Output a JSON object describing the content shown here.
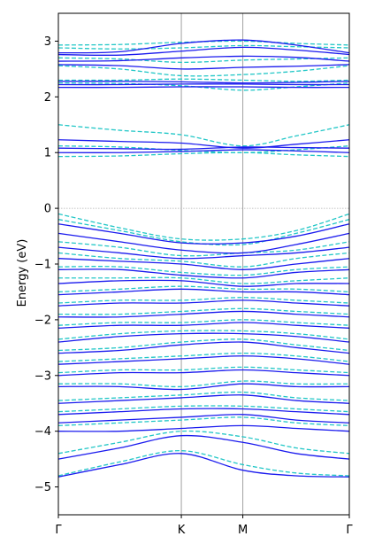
{
  "chart_data": {
    "type": "line",
    "title": "",
    "xlabel": "",
    "ylabel": "Energy (eV)",
    "ylim": [
      -5.5,
      3.5
    ],
    "yticks": [
      -5,
      -4,
      -3,
      -2,
      -1,
      0,
      1,
      2,
      3
    ],
    "ytick_labels": [
      "−5",
      "−4",
      "−3",
      "−2",
      "−1",
      "0",
      "1",
      "2",
      "3"
    ],
    "kpath": {
      "labels": [
        "Γ",
        "K",
        "M",
        "Γ"
      ],
      "positions": [
        0,
        1,
        1.5,
        2.366
      ]
    },
    "fermi_level": 0,
    "grid": "vertical lines at high-symmetry points",
    "colors": {
      "solid": "#1a1aee",
      "dashed": "#22c7c7",
      "vline": "#a0a0a0",
      "fermi": "#b0b0b0"
    },
    "series": [
      {
        "style": "solid",
        "bands": [
          [
            2.79,
            2.81,
            2.96,
            3.02,
            2.93,
            2.79
          ],
          [
            2.76,
            2.75,
            2.82,
            2.89,
            2.84,
            2.76
          ],
          [
            2.64,
            2.65,
            2.7,
            2.73,
            2.71,
            2.64
          ],
          [
            2.58,
            2.56,
            2.5,
            2.53,
            2.55,
            2.58
          ],
          [
            2.28,
            2.28,
            2.27,
            2.25,
            2.26,
            2.28
          ],
          [
            2.22,
            2.22,
            2.23,
            2.23,
            2.22,
            2.22
          ],
          [
            2.17,
            2.17,
            2.18,
            2.18,
            2.17,
            2.17
          ],
          [
            1.23,
            1.2,
            1.17,
            1.08,
            1.15,
            1.23
          ],
          [
            1.08,
            1.07,
            1.06,
            1.1,
            1.09,
            1.08
          ],
          [
            1.0,
            1.0,
            1.02,
            1.05,
            1.03,
            1.0
          ],
          [
            -0.28,
            -0.45,
            -0.62,
            -0.62,
            -0.5,
            -0.28
          ],
          [
            -0.45,
            -0.6,
            -0.75,
            -0.8,
            -0.65,
            -0.45
          ],
          [
            -0.7,
            -0.8,
            -0.9,
            -0.85,
            -0.8,
            -0.7
          ],
          [
            -0.9,
            -0.95,
            -1.0,
            -1.1,
            -1.0,
            -0.9
          ],
          [
            -1.1,
            -1.1,
            -1.2,
            -1.25,
            -1.15,
            -1.1
          ],
          [
            -1.35,
            -1.3,
            -1.3,
            -1.4,
            -1.35,
            -1.35
          ],
          [
            -1.55,
            -1.5,
            -1.45,
            -1.5,
            -1.5,
            -1.55
          ],
          [
            -1.75,
            -1.7,
            -1.7,
            -1.65,
            -1.7,
            -1.75
          ],
          [
            -1.95,
            -1.95,
            -1.9,
            -1.85,
            -1.9,
            -1.95
          ],
          [
            -2.15,
            -2.1,
            -2.1,
            -2.05,
            -2.1,
            -2.15
          ],
          [
            -2.4,
            -2.3,
            -2.25,
            -2.25,
            -2.3,
            -2.4
          ],
          [
            -2.6,
            -2.55,
            -2.45,
            -2.4,
            -2.5,
            -2.6
          ],
          [
            -2.8,
            -2.75,
            -2.7,
            -2.65,
            -2.7,
            -2.8
          ],
          [
            -3.0,
            -2.95,
            -2.95,
            -2.9,
            -2.95,
            -3.0
          ],
          [
            -3.2,
            -3.2,
            -3.25,
            -3.15,
            -3.2,
            -3.2
          ],
          [
            -3.5,
            -3.45,
            -3.4,
            -3.35,
            -3.45,
            -3.5
          ],
          [
            -3.7,
            -3.65,
            -3.6,
            -3.6,
            -3.65,
            -3.7
          ],
          [
            -3.85,
            -3.8,
            -3.75,
            -3.7,
            -3.8,
            -3.85
          ],
          [
            -4.0,
            -4.0,
            -3.95,
            -3.9,
            -3.95,
            -4.0
          ],
          [
            -4.5,
            -4.3,
            -4.08,
            -4.2,
            -4.4,
            -4.5
          ],
          [
            -4.82,
            -4.6,
            -4.4,
            -4.7,
            -4.8,
            -4.82
          ]
        ]
      },
      {
        "style": "dashed",
        "bands": [
          [
            2.93,
            2.94,
            2.98,
            3.0,
            2.96,
            2.93
          ],
          [
            2.88,
            2.86,
            2.88,
            2.92,
            2.9,
            2.88
          ],
          [
            2.7,
            2.68,
            2.62,
            2.66,
            2.68,
            2.7
          ],
          [
            2.56,
            2.5,
            2.38,
            2.4,
            2.46,
            2.56
          ],
          [
            2.3,
            2.3,
            2.32,
            2.3,
            2.28,
            2.3
          ],
          [
            2.25,
            2.24,
            2.2,
            2.12,
            2.18,
            2.25
          ],
          [
            1.5,
            1.4,
            1.32,
            1.12,
            1.3,
            1.5
          ],
          [
            1.12,
            1.1,
            1.04,
            1.0,
            1.05,
            1.12
          ],
          [
            0.93,
            0.94,
            0.98,
            1.0,
            0.96,
            0.93
          ],
          [
            -0.1,
            -0.35,
            -0.55,
            -0.55,
            -0.4,
            -0.1
          ],
          [
            -0.2,
            -0.4,
            -0.6,
            -0.65,
            -0.45,
            -0.2
          ],
          [
            -0.6,
            -0.7,
            -0.85,
            -0.8,
            -0.75,
            -0.6
          ],
          [
            -0.8,
            -0.9,
            -0.95,
            -1.05,
            -0.9,
            -0.8
          ],
          [
            -1.05,
            -1.05,
            -1.15,
            -1.2,
            -1.1,
            -1.05
          ],
          [
            -1.25,
            -1.25,
            -1.25,
            -1.35,
            -1.3,
            -1.25
          ],
          [
            -1.5,
            -1.45,
            -1.4,
            -1.45,
            -1.45,
            -1.5
          ],
          [
            -1.7,
            -1.65,
            -1.65,
            -1.6,
            -1.65,
            -1.7
          ],
          [
            -1.9,
            -1.9,
            -1.85,
            -1.8,
            -1.85,
            -1.9
          ],
          [
            -2.1,
            -2.05,
            -2.05,
            -2.0,
            -2.05,
            -2.1
          ],
          [
            -2.35,
            -2.25,
            -2.2,
            -2.2,
            -2.25,
            -2.35
          ],
          [
            -2.55,
            -2.5,
            -2.4,
            -2.35,
            -2.45,
            -2.55
          ],
          [
            -2.75,
            -2.7,
            -2.65,
            -2.6,
            -2.65,
            -2.75
          ],
          [
            -2.95,
            -2.9,
            -2.9,
            -2.85,
            -2.9,
            -2.95
          ],
          [
            -3.15,
            -3.15,
            -3.2,
            -3.1,
            -3.15,
            -3.15
          ],
          [
            -3.45,
            -3.4,
            -3.35,
            -3.3,
            -3.4,
            -3.45
          ],
          [
            -3.65,
            -3.6,
            -3.55,
            -3.55,
            -3.6,
            -3.65
          ],
          [
            -3.9,
            -3.85,
            -3.8,
            -3.75,
            -3.85,
            -3.9
          ],
          [
            -4.4,
            -4.2,
            -4.0,
            -4.1,
            -4.3,
            -4.4
          ],
          [
            -4.8,
            -4.55,
            -4.35,
            -4.6,
            -4.75,
            -4.8
          ]
        ]
      }
    ]
  }
}
